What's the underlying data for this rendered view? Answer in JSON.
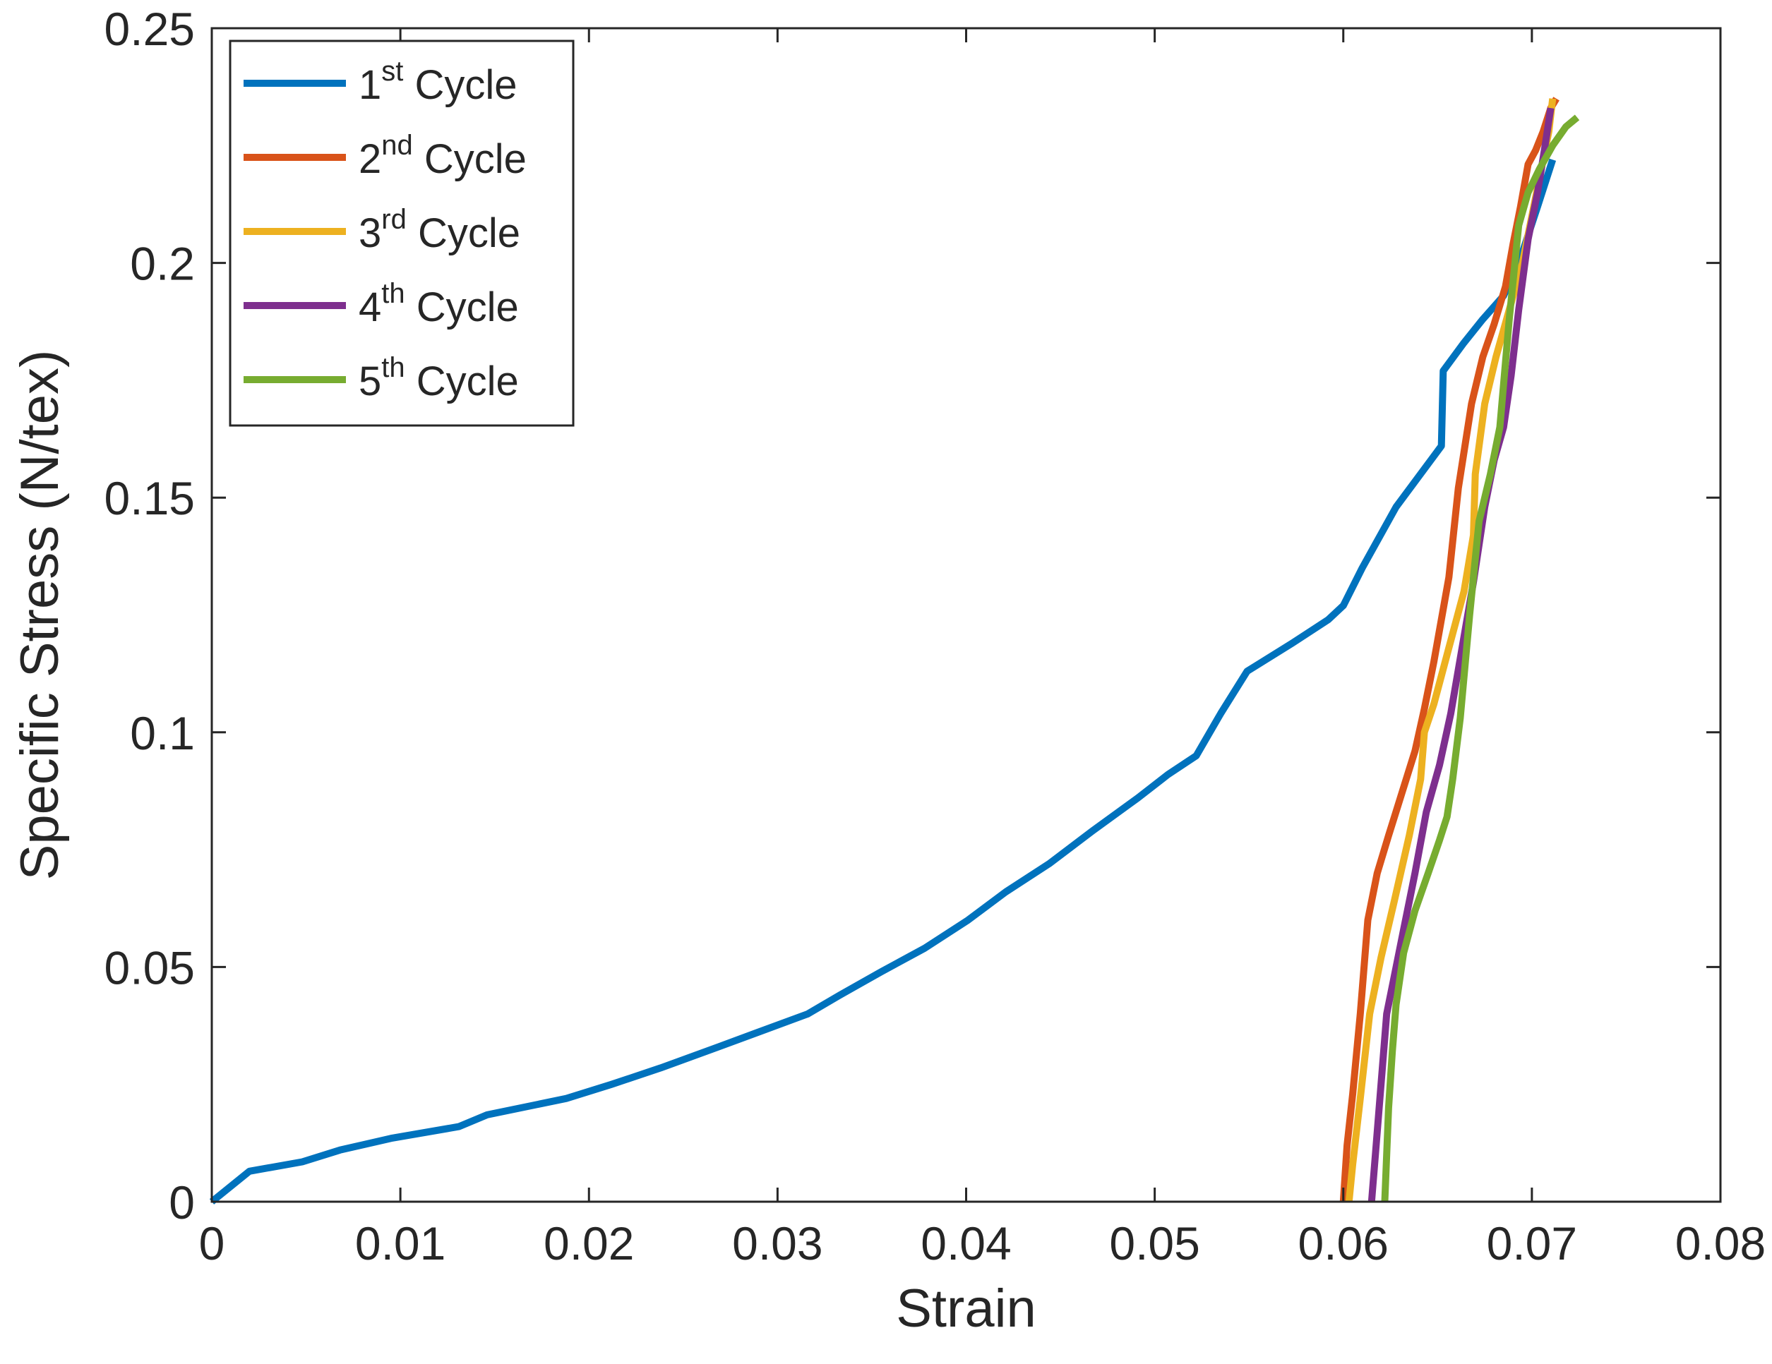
{
  "chart_data": {
    "type": "line",
    "title": "",
    "xlabel": "Strain",
    "ylabel": "Specific Stress (N/tex)",
    "xlim": [
      0,
      0.08
    ],
    "ylim": [
      0,
      0.25
    ],
    "xticks": [
      0,
      0.01,
      0.02,
      0.03,
      0.04,
      0.05,
      0.06,
      0.07,
      0.08
    ],
    "yticks": [
      0,
      0.05,
      0.1,
      0.15,
      0.2,
      0.25
    ],
    "xtick_labels": [
      "0",
      "0.01",
      "0.02",
      "0.03",
      "0.04",
      "0.05",
      "0.06",
      "0.07",
      "0.08"
    ],
    "ytick_labels": [
      "0",
      "0.05",
      "0.1",
      "0.15",
      "0.2",
      "0.25"
    ],
    "grid": false,
    "box": true,
    "legend_position": "top-left",
    "series": [
      {
        "name": "1st Cycle",
        "label_main": "1",
        "label_sup": "st",
        "label_tail": " Cycle",
        "color": "#0072BD",
        "x": [
          0,
          0.002,
          0.0048,
          0.0068,
          0.0095,
          0.0131,
          0.0146,
          0.0188,
          0.0212,
          0.0238,
          0.0262,
          0.0289,
          0.0316,
          0.0333,
          0.0355,
          0.0378,
          0.0401,
          0.0421,
          0.0444,
          0.0467,
          0.0491,
          0.0507,
          0.0522,
          0.0535,
          0.0549,
          0.0573,
          0.0592,
          0.06,
          0.061,
          0.0628,
          0.0652,
          0.0653,
          0.0664,
          0.0674,
          0.0685,
          0.0694,
          0.0703,
          0.0711
        ],
        "y": [
          0,
          0.0065,
          0.0085,
          0.011,
          0.0135,
          0.016,
          0.0185,
          0.022,
          0.025,
          0.0285,
          0.032,
          0.036,
          0.04,
          0.044,
          0.049,
          0.054,
          0.06,
          0.066,
          0.072,
          0.079,
          0.086,
          0.091,
          0.095,
          0.104,
          0.113,
          0.119,
          0.124,
          0.127,
          0.135,
          0.148,
          0.161,
          0.177,
          0.183,
          0.188,
          0.193,
          0.201,
          0.212,
          0.222
        ]
      },
      {
        "name": "2nd Cycle",
        "label_main": "2",
        "label_sup": "nd",
        "label_tail": " Cycle",
        "color": "#D95319",
        "x": [
          0.06,
          0.0602,
          0.0605,
          0.0609,
          0.0613,
          0.0618,
          0.0624,
          0.0631,
          0.0638,
          0.0643,
          0.0648,
          0.0656,
          0.0661,
          0.0668,
          0.0674,
          0.068,
          0.0686,
          0.069,
          0.0694,
          0.0698,
          0.0702,
          0.0706,
          0.071,
          0.0713
        ],
        "y": [
          0,
          0.012,
          0.023,
          0.04,
          0.06,
          0.07,
          0.078,
          0.087,
          0.096,
          0.105,
          0.115,
          0.133,
          0.152,
          0.17,
          0.18,
          0.187,
          0.195,
          0.204,
          0.212,
          0.221,
          0.224,
          0.228,
          0.233,
          0.235
        ]
      },
      {
        "name": "3rd Cycle",
        "label_main": "3",
        "label_sup": "rd",
        "label_tail": " Cycle",
        "color": "#EDB120",
        "x": [
          0.0603,
          0.0605,
          0.0609,
          0.0614,
          0.062,
          0.0627,
          0.0635,
          0.0641,
          0.0643,
          0.0648,
          0.0656,
          0.0664,
          0.0669,
          0.067,
          0.0675,
          0.0681,
          0.0688,
          0.0695,
          0.07,
          0.0705,
          0.0709,
          0.0711
        ],
        "y": [
          0,
          0.008,
          0.022,
          0.04,
          0.052,
          0.064,
          0.078,
          0.09,
          0.1,
          0.106,
          0.118,
          0.13,
          0.142,
          0.155,
          0.17,
          0.18,
          0.19,
          0.2,
          0.21,
          0.22,
          0.228,
          0.235
        ]
      },
      {
        "name": "4th Cycle",
        "label_main": "4",
        "label_sup": "th",
        "label_tail": " Cycle",
        "color": "#7E2F8E",
        "x": [
          0.0615,
          0.0617,
          0.062,
          0.0623,
          0.0627,
          0.0632,
          0.0638,
          0.0644,
          0.0651,
          0.0657,
          0.0663,
          0.0669,
          0.0675,
          0.068,
          0.0685,
          0.0689,
          0.0693,
          0.0698,
          0.0703,
          0.0707,
          0.071
        ],
        "y": [
          0,
          0.01,
          0.025,
          0.04,
          0.048,
          0.058,
          0.07,
          0.083,
          0.093,
          0.104,
          0.118,
          0.132,
          0.148,
          0.158,
          0.165,
          0.176,
          0.19,
          0.205,
          0.215,
          0.225,
          0.233
        ]
      },
      {
        "name": "5th Cycle",
        "label_main": "5",
        "label_sup": "th",
        "label_tail": " Cycle",
        "color": "#77AC30",
        "x": [
          0.0622,
          0.0623,
          0.0624,
          0.0626,
          0.0628,
          0.0632,
          0.0638,
          0.0645,
          0.0651,
          0.0655,
          0.0658,
          0.0662,
          0.0667,
          0.0672,
          0.0678,
          0.0683,
          0.0688,
          0.0693,
          0.0698,
          0.0704,
          0.0711,
          0.0718,
          0.0724
        ],
        "y": [
          0,
          0.01,
          0.02,
          0.032,
          0.042,
          0.053,
          0.062,
          0.07,
          0.077,
          0.082,
          0.09,
          0.103,
          0.125,
          0.145,
          0.155,
          0.165,
          0.188,
          0.208,
          0.215,
          0.22,
          0.225,
          0.229,
          0.231
        ]
      }
    ]
  }
}
